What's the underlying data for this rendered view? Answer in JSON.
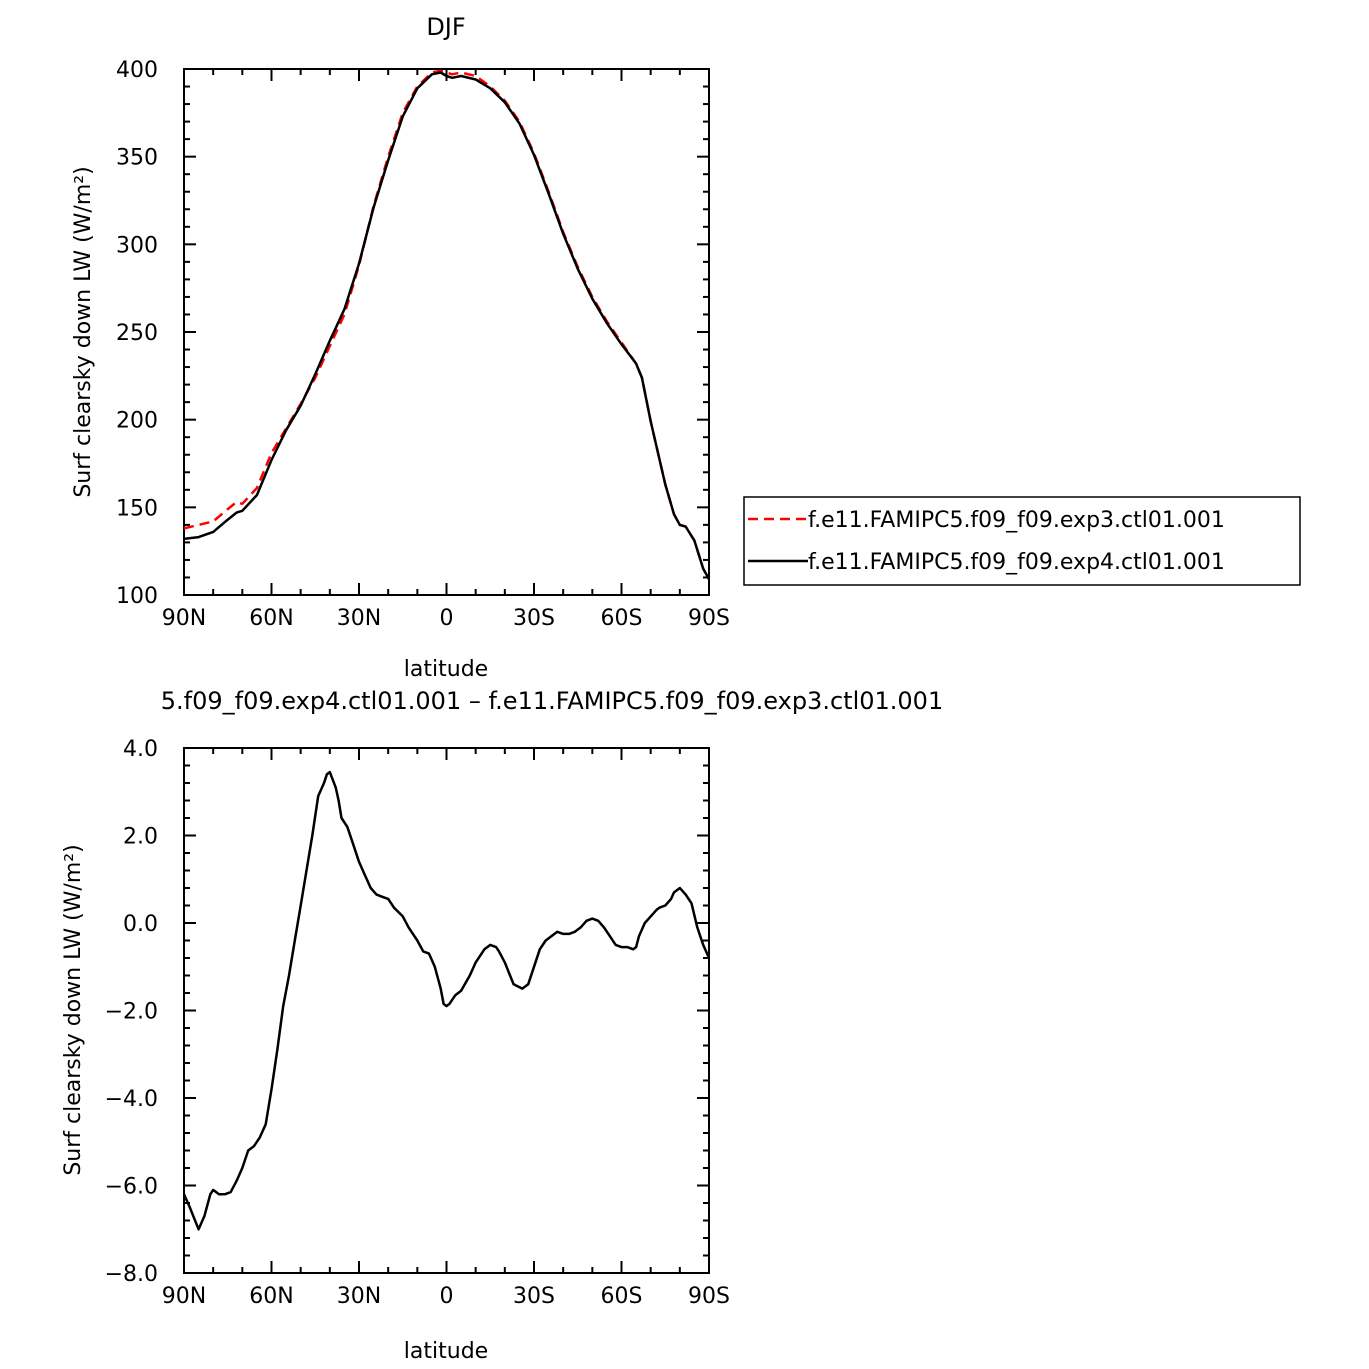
{
  "chart_data": [
    {
      "type": "line",
      "title": "DJF",
      "xlabel": "latitude",
      "ylabel": "Surf clearsky down LW (W/m²)",
      "xlim": [
        90,
        -90
      ],
      "ylim": [
        100,
        400
      ],
      "x_ticks": [
        {
          "value": 90,
          "label": "90N"
        },
        {
          "value": 60,
          "label": "60N"
        },
        {
          "value": 30,
          "label": "30N"
        },
        {
          "value": 0,
          "label": "0"
        },
        {
          "value": -30,
          "label": "30S"
        },
        {
          "value": -60,
          "label": "60S"
        },
        {
          "value": -90,
          "label": "90S"
        }
      ],
      "y_ticks": [
        {
          "value": 100,
          "label": "100"
        },
        {
          "value": 150,
          "label": "150"
        },
        {
          "value": 200,
          "label": "200"
        },
        {
          "value": 250,
          "label": "250"
        },
        {
          "value": 300,
          "label": "300"
        },
        {
          "value": 350,
          "label": "350"
        },
        {
          "value": 400,
          "label": "400"
        }
      ],
      "legend": "right",
      "series": [
        {
          "name": "f.e11.FAMIPC5.f09_f09.exp3.ctl01.001",
          "color": "#ff0000",
          "dash": true,
          "x": [
            90,
            85,
            80,
            75,
            72,
            70,
            65,
            60,
            55,
            50,
            45,
            40,
            35,
            30,
            25,
            20,
            15,
            10,
            5,
            2,
            0,
            -2,
            -5,
            -10,
            -15,
            -20,
            -25,
            -30,
            -35,
            -40,
            -45,
            -50,
            -55,
            -60,
            -65,
            -67,
            -70,
            -75,
            -78,
            -80,
            -82,
            -85,
            -88,
            -90
          ],
          "y": [
            138,
            140,
            142,
            149,
            153,
            152,
            161,
            181,
            195,
            209,
            224,
            242,
            260,
            288,
            322,
            350,
            375,
            390,
            398,
            399,
            398,
            397,
            398,
            396,
            390,
            382,
            370,
            352,
            330,
            307,
            287,
            270,
            256,
            244,
            232,
            224,
            199,
            163,
            146,
            140,
            139,
            131,
            115,
            109
          ]
        },
        {
          "name": "f.e11.FAMIPC5.f09_f09.exp4.ctl01.001",
          "color": "#000000",
          "dash": false,
          "x": [
            90,
            85,
            80,
            75,
            72,
            70,
            65,
            60,
            55,
            50,
            45,
            40,
            35,
            30,
            25,
            20,
            15,
            10,
            5,
            2,
            0,
            -2,
            -5,
            -10,
            -15,
            -20,
            -25,
            -30,
            -35,
            -40,
            -45,
            -50,
            -55,
            -60,
            -65,
            -67,
            -70,
            -75,
            -78,
            -80,
            -82,
            -85,
            -88,
            -90
          ],
          "y": [
            132,
            133,
            136,
            143,
            147,
            148,
            157,
            177,
            194,
            208,
            226,
            245,
            263,
            289,
            321,
            348,
            373,
            389,
            397,
            398,
            396,
            395,
            396,
            394,
            389,
            381,
            369,
            351,
            329,
            306,
            286,
            269,
            255,
            243,
            232,
            224,
            199,
            163,
            146,
            140,
            139,
            131,
            115,
            109
          ]
        }
      ]
    },
    {
      "type": "line",
      "title": "5.f09_f09.exp4.ctl01.001 – f.e11.FAMIPC5.f09_f09.exp3.ctl01.001",
      "xlabel": "latitude",
      "ylabel": "Surf clearsky down LW (W/m²)",
      "xlim": [
        90,
        -90
      ],
      "ylim": [
        -8.0,
        4.0
      ],
      "x_ticks": [
        {
          "value": 90,
          "label": "90N"
        },
        {
          "value": 60,
          "label": "60N"
        },
        {
          "value": 30,
          "label": "30N"
        },
        {
          "value": 0,
          "label": "0"
        },
        {
          "value": -30,
          "label": "30S"
        },
        {
          "value": -60,
          "label": "60S"
        },
        {
          "value": -90,
          "label": "90S"
        }
      ],
      "y_ticks": [
        {
          "value": -8.0,
          "label": "−8.0"
        },
        {
          "value": -6.0,
          "label": "−6.0"
        },
        {
          "value": -4.0,
          "label": "−4.0"
        },
        {
          "value": -2.0,
          "label": "−2.0"
        },
        {
          "value": 0.0,
          "label": "0.0"
        },
        {
          "value": 2.0,
          "label": "2.0"
        },
        {
          "value": 4.0,
          "label": "4.0"
        }
      ],
      "series": [
        {
          "color": "#000000",
          "dash": false,
          "x": [
            90,
            88,
            85,
            83,
            81,
            80,
            78,
            76,
            74,
            72,
            70,
            68,
            66,
            64,
            62,
            60,
            58,
            56,
            54,
            52,
            50,
            48,
            46,
            44,
            42,
            41,
            40,
            38,
            37,
            36,
            34,
            32,
            30,
            28,
            26,
            24,
            22,
            20,
            18,
            15,
            13,
            10,
            8,
            6,
            4,
            2,
            1,
            0,
            -1,
            -3,
            -5,
            -8,
            -10,
            -13,
            -15,
            -17,
            -18,
            -20,
            -23,
            -26,
            -28,
            -30,
            -32,
            -34,
            -36,
            -38,
            -40,
            -42,
            -44,
            -46,
            -48,
            -50,
            -52,
            -54,
            -56,
            -58,
            -60,
            -62,
            -64,
            -65,
            -66,
            -67,
            -68,
            -70,
            -72,
            -73,
            -75,
            -77,
            -78,
            -79,
            -80,
            -82,
            -84,
            -86,
            -88,
            -90
          ],
          "y": [
            -6.2,
            -6.5,
            -7.0,
            -6.7,
            -6.2,
            -6.1,
            -6.2,
            -6.2,
            -6.15,
            -5.9,
            -5.6,
            -5.2,
            -5.1,
            -4.9,
            -4.6,
            -3.8,
            -2.9,
            -1.9,
            -1.2,
            -0.4,
            0.4,
            1.2,
            2.0,
            2.9,
            3.2,
            3.4,
            3.45,
            3.1,
            2.8,
            2.4,
            2.2,
            1.8,
            1.4,
            1.1,
            0.8,
            0.65,
            0.6,
            0.55,
            0.35,
            0.15,
            -0.1,
            -0.4,
            -0.65,
            -0.7,
            -1.0,
            -1.5,
            -1.85,
            -1.9,
            -1.85,
            -1.65,
            -1.55,
            -1.2,
            -0.9,
            -0.6,
            -0.5,
            -0.55,
            -0.65,
            -0.9,
            -1.4,
            -1.5,
            -1.4,
            -1.0,
            -0.6,
            -0.4,
            -0.3,
            -0.2,
            -0.25,
            -0.25,
            -0.2,
            -0.1,
            0.05,
            0.1,
            0.05,
            -0.1,
            -0.3,
            -0.5,
            -0.55,
            -0.55,
            -0.6,
            -0.55,
            -0.3,
            -0.15,
            0.0,
            0.15,
            0.3,
            0.35,
            0.4,
            0.55,
            0.7,
            0.75,
            0.8,
            0.65,
            0.45,
            -0.1,
            -0.5,
            -0.8
          ]
        }
      ]
    }
  ]
}
